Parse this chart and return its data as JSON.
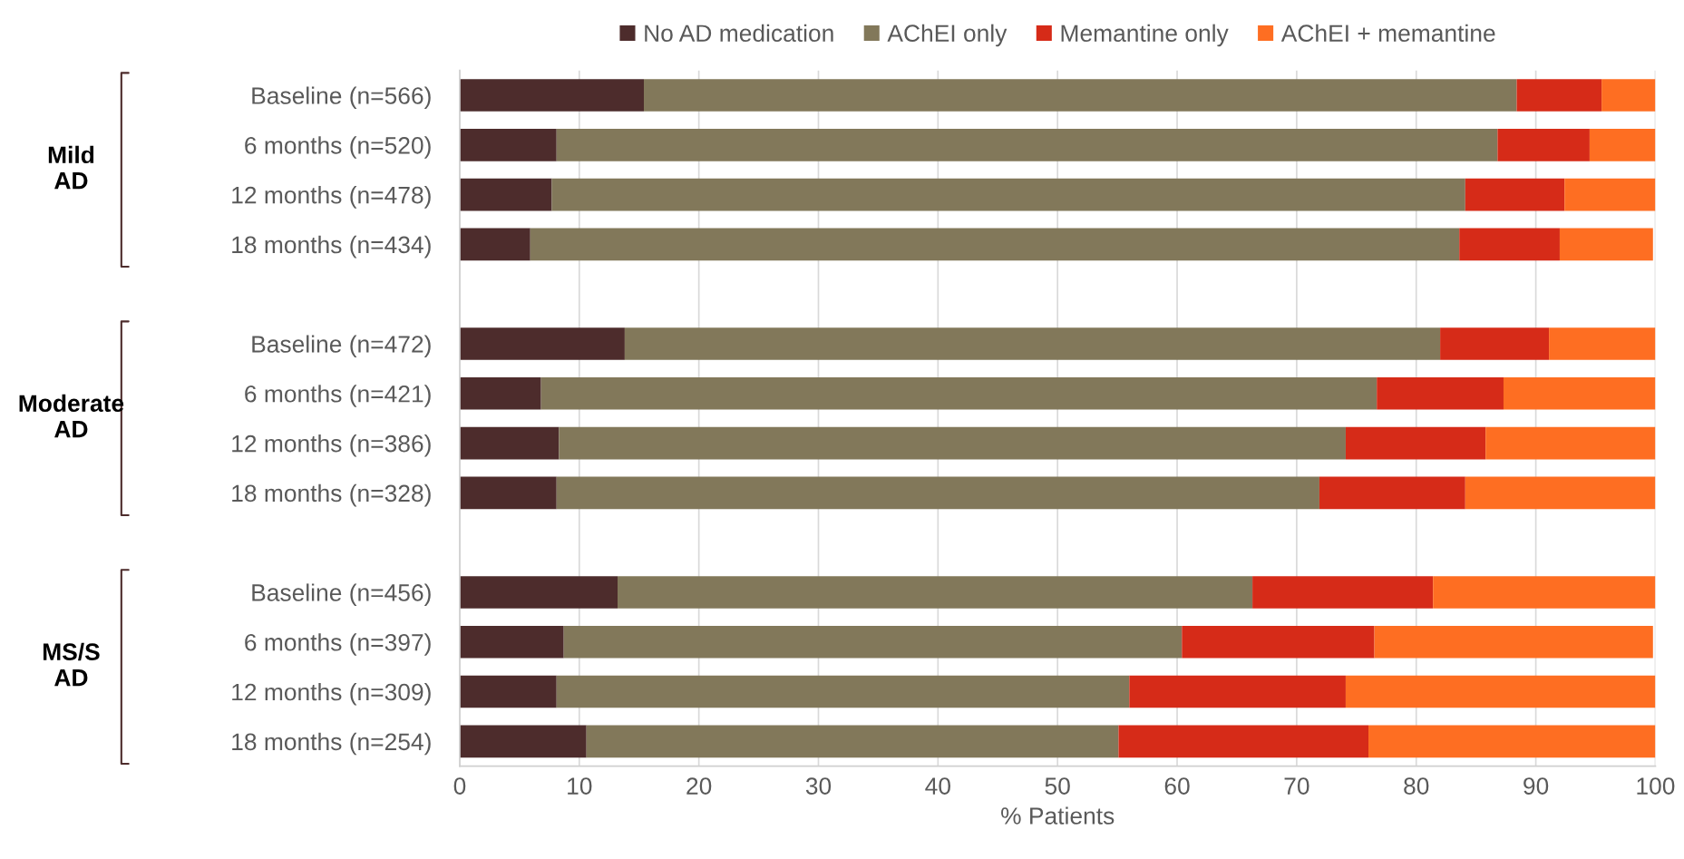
{
  "chart_data": {
    "type": "bar",
    "orientation": "horizontal",
    "stacked": true,
    "xlabel": "% Patients",
    "categories": [
      "Baseline (n=566)",
      "6 months (n=520)",
      "12 months (n=478)",
      "18 months (n=434)",
      null,
      "Baseline (n=472)",
      "6 months (n=421)",
      "12 months (n=386)",
      "18 months (n=328)",
      null,
      "Baseline (n=456)",
      "6 months (n=397)",
      "12 months (n=309)",
      "18 months (n=254)"
    ],
    "series": [
      {
        "name": "No AD medication",
        "color": "#4d2c2c",
        "values": [
          15.4,
          8.1,
          7.7,
          5.9,
          null,
          13.8,
          6.8,
          8.3,
          8.1,
          null,
          13.2,
          8.7,
          8.1,
          10.6
        ]
      },
      {
        "name": "AChEI only",
        "color": "#82785a",
        "values": [
          73.0,
          78.7,
          76.4,
          77.7,
          null,
          68.2,
          69.9,
          65.8,
          63.8,
          null,
          53.1,
          51.7,
          47.9,
          44.5
        ]
      },
      {
        "name": "Memantine only",
        "color": "#d62b18",
        "values": [
          7.1,
          7.7,
          8.3,
          8.4,
          null,
          9.1,
          10.6,
          11.7,
          12.2,
          null,
          15.1,
          16.1,
          18.1,
          20.9
        ]
      },
      {
        "name": "AChEI + memantine",
        "color": "#fe6e22",
        "values": [
          4.5,
          5.5,
          7.6,
          7.8,
          null,
          8.9,
          12.7,
          14.2,
          15.9,
          null,
          18.6,
          23.3,
          25.9,
          24.0
        ]
      }
    ],
    "xlim": [
      0,
      100
    ],
    "xticks": [
      0,
      10,
      20,
      30,
      40,
      50,
      60,
      70,
      80,
      90,
      100
    ],
    "grid": "x",
    "legend": "top",
    "annotations": [
      "Mild\nAD",
      "Moderate\nAD",
      "MS/S\nAD"
    ]
  }
}
